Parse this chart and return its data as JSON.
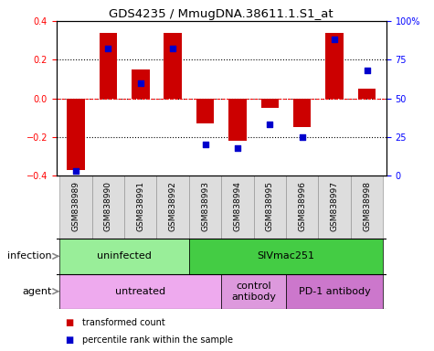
{
  "title": "GDS4235 / MmugDNA.38611.1.S1_at",
  "samples": [
    "GSM838989",
    "GSM838990",
    "GSM838991",
    "GSM838992",
    "GSM838993",
    "GSM838994",
    "GSM838995",
    "GSM838996",
    "GSM838997",
    "GSM838998"
  ],
  "transformed_count": [
    -0.37,
    0.34,
    0.15,
    0.34,
    -0.13,
    -0.22,
    -0.05,
    -0.15,
    0.34,
    0.05
  ],
  "percentile_rank": [
    3,
    82,
    60,
    82,
    20,
    18,
    33,
    25,
    88,
    68
  ],
  "ylim": [
    -0.4,
    0.4
  ],
  "yticks": [
    -0.4,
    -0.2,
    0.0,
    0.2,
    0.4
  ],
  "right_yticks": [
    0,
    25,
    50,
    75,
    100
  ],
  "right_yticklabels": [
    "0",
    "25",
    "50",
    "75",
    "100%"
  ],
  "bar_color": "#cc0000",
  "dot_color": "#0000cc",
  "dot_size": 25,
  "bar_width": 0.55,
  "infection_groups": [
    {
      "label": "uninfected",
      "start": 0,
      "end": 4,
      "color": "#99ee99"
    },
    {
      "label": "SIVmac251",
      "start": 4,
      "end": 10,
      "color": "#44cc44"
    }
  ],
  "agent_groups": [
    {
      "label": "untreated",
      "start": 0,
      "end": 5,
      "color": "#eeaaee"
    },
    {
      "label": "control\nantibody",
      "start": 5,
      "end": 7,
      "color": "#dd99dd"
    },
    {
      "label": "PD-1 antibody",
      "start": 7,
      "end": 10,
      "color": "#cc77cc"
    }
  ],
  "infection_label": "infection",
  "agent_label": "agent",
  "legend_items": [
    {
      "label": "transformed count",
      "color": "#cc0000"
    },
    {
      "label": "percentile rank within the sample",
      "color": "#0000cc"
    }
  ],
  "sample_bg_color": "#dddddd",
  "sample_border_color": "#999999"
}
